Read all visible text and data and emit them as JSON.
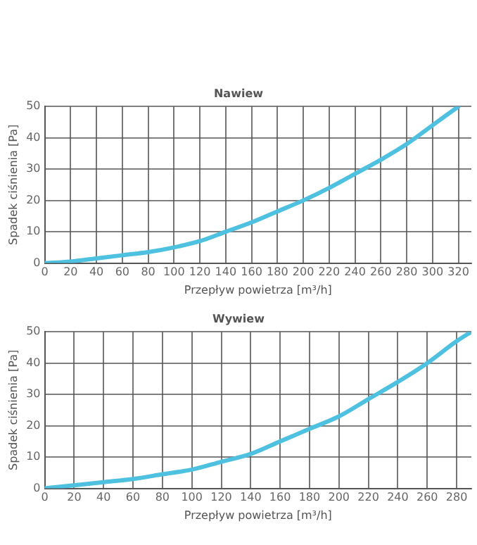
{
  "chart_data": [
    {
      "type": "line",
      "title": "Nawiew",
      "xlabel": "Przepływ powietrza [m³/h]",
      "ylabel": "Spadek ciśnienia [Pa]",
      "xlim": [
        0,
        330
      ],
      "xticks": [
        0,
        20,
        40,
        60,
        80,
        100,
        120,
        140,
        160,
        180,
        200,
        220,
        240,
        260,
        280,
        300,
        320
      ],
      "ylim": [
        0,
        50
      ],
      "yticks": [
        0,
        10,
        20,
        30,
        40,
        50
      ],
      "grid": true,
      "legend": false,
      "marker": "none",
      "series": [
        {
          "color": "#4fc1e0",
          "x": [
            0,
            20,
            40,
            60,
            80,
            100,
            120,
            140,
            160,
            180,
            200,
            220,
            240,
            260,
            280,
            300,
            320
          ],
          "values": [
            0,
            0.5,
            1.5,
            2.5,
            3.5,
            5,
            7,
            10,
            13,
            16.5,
            20,
            24,
            28.5,
            33,
            38,
            44,
            50
          ]
        }
      ]
    },
    {
      "type": "line",
      "title": "Wywiew",
      "xlabel": "Przepływ powietrza [m³/h]",
      "ylabel": "Spadek ciśnienia [Pa]",
      "xlim": [
        0,
        290
      ],
      "xticks": [
        0,
        20,
        40,
        60,
        80,
        100,
        120,
        140,
        160,
        180,
        200,
        220,
        240,
        260,
        280
      ],
      "ylim": [
        0,
        50
      ],
      "yticks": [
        0,
        10,
        20,
        30,
        40,
        50
      ],
      "grid": true,
      "legend": false,
      "marker": "none",
      "series": [
        {
          "color": "#4fc1e0",
          "x": [
            0,
            20,
            40,
            60,
            80,
            100,
            120,
            140,
            160,
            180,
            200,
            220,
            240,
            260,
            280,
            290
          ],
          "values": [
            0,
            1,
            2,
            3,
            4.5,
            6,
            8.5,
            11,
            15,
            19,
            23,
            28.5,
            34,
            40,
            47,
            50
          ]
        }
      ]
    }
  ]
}
